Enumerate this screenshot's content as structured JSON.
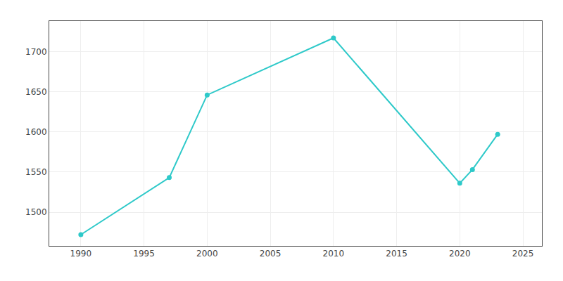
{
  "chart_data": {
    "type": "line",
    "x": [
      1990,
      1997,
      2000,
      2010,
      2020,
      2021,
      2023
    ],
    "values": [
      1472,
      1543,
      1646,
      1717,
      1536,
      1553,
      1597
    ],
    "color": "#2ec9c9",
    "marker": "circle",
    "xlim": [
      1987.5,
      2026.5
    ],
    "ylim": [
      1458,
      1738
    ],
    "xticks": [
      1990,
      1995,
      2000,
      2005,
      2010,
      2015,
      2020,
      2025
    ],
    "yticks": [
      1500,
      1550,
      1600,
      1650,
      1700
    ],
    "grid": true
  }
}
